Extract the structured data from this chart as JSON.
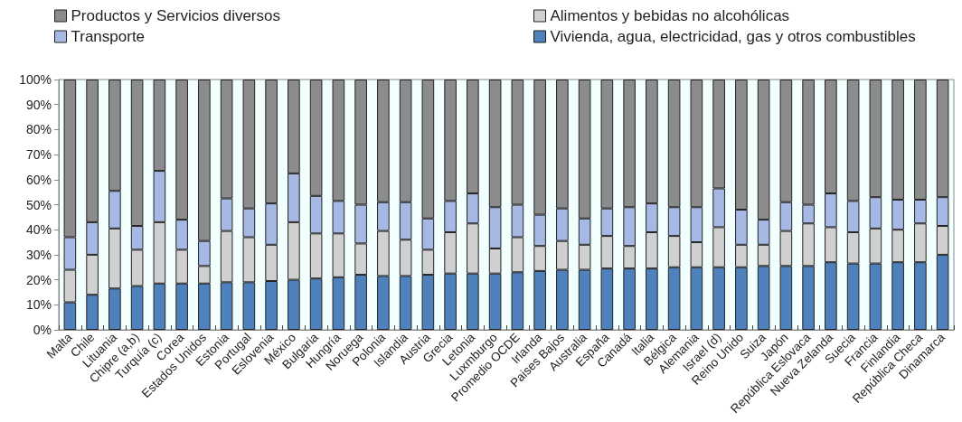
{
  "chart_data": {
    "type": "bar",
    "stacked": true,
    "grid": false,
    "legend": "top",
    "categories": [
      "Malta",
      "Chile",
      "Lituania",
      "Chipre (a,b)",
      "Turquía (c)",
      "Corea",
      "Estados Unidos",
      "Estonia",
      "Portugal",
      "Eslovenia",
      "México",
      "Bulgaria",
      "Hungría",
      "Noruega",
      "Polonia",
      "Islandia",
      "Austria",
      "Grecia",
      "Letonia",
      "Luxmburgo",
      "Promedio OCDE",
      "Irlanda",
      "Paises Bajos",
      "Australia",
      "España",
      "Canadá",
      "Italia",
      "Bélgica",
      "Alemania",
      "Israel (d)",
      "Reino Unido",
      "Suiza",
      "Japón",
      "República Eslovaca",
      "Nueva Zelanda",
      "Suecia",
      "Francia",
      "Finlandia",
      "República Checa",
      "Dinamarca"
    ],
    "ylim": [
      0,
      100
    ],
    "yticks": [
      {
        "value": 0,
        "label": "0%"
      },
      {
        "value": 10,
        "label": "10%"
      },
      {
        "value": 20,
        "label": "20%"
      },
      {
        "value": 30,
        "label": "30%"
      },
      {
        "value": 40,
        "label": "40%"
      },
      {
        "value": 50,
        "label": "50%"
      },
      {
        "value": 60,
        "label": "60%"
      },
      {
        "value": 70,
        "label": "70%"
      },
      {
        "value": 80,
        "label": "80%"
      },
      {
        "value": 90,
        "label": "90%"
      },
      {
        "value": 100,
        "label": "100%"
      }
    ],
    "series": [
      {
        "name": "Vivienda, agua, electricidad, gas y otros combustibles",
        "color": "#4f81bd",
        "values": [
          11,
          14,
          16.5,
          17.5,
          18.5,
          18.5,
          18.5,
          19,
          19,
          19.5,
          20,
          20.5,
          21,
          22,
          21.5,
          21.5,
          22,
          22.5,
          22.5,
          22.5,
          23,
          23.5,
          24,
          24,
          24.5,
          24.5,
          24.5,
          25,
          25,
          25,
          25,
          25.5,
          25.5,
          25.5,
          27,
          26.5,
          26.5,
          27,
          27,
          30
        ]
      },
      {
        "name": "Alimentos y bebidas no alcohólicas",
        "color": "#d0d0d0",
        "values": [
          13,
          16,
          24,
          14.5,
          24.5,
          13.5,
          7,
          20.5,
          18,
          14.5,
          23,
          18,
          17.5,
          12.5,
          18,
          14.5,
          10,
          16.5,
          20,
          10,
          14,
          10,
          11.5,
          10,
          13,
          9,
          14.5,
          12.5,
          10,
          16,
          9,
          8.5,
          14,
          17,
          14,
          12.5,
          14,
          13,
          15.5,
          11.5
        ]
      },
      {
        "name": "Transporte",
        "color": "#a6b8e4",
        "values": [
          13,
          13,
          15,
          9.5,
          20.5,
          12,
          10,
          13,
          11.5,
          16.5,
          19.5,
          15,
          13,
          15.5,
          11.5,
          15,
          12.5,
          12.5,
          12,
          16.5,
          13,
          12.5,
          13,
          10.5,
          11,
          15.5,
          11.5,
          11.5,
          14,
          15.5,
          14,
          10,
          11.5,
          7.5,
          13.5,
          12.5,
          12.5,
          12,
          9.5,
          11.5
        ]
      },
      {
        "name": "Productos y Servicios diversos",
        "color": "#8c8c8c",
        "values": [
          63,
          57,
          44.5,
          58.5,
          36.5,
          56,
          64.5,
          47.5,
          51.5,
          49.5,
          37.5,
          46.5,
          48.5,
          50,
          49,
          49,
          55.5,
          48.5,
          45.5,
          51,
          50,
          54,
          51.5,
          55.5,
          51.5,
          51,
          49.5,
          51,
          51,
          43.5,
          52,
          56,
          49,
          50,
          45.5,
          48.5,
          47,
          48,
          48,
          47
        ]
      }
    ]
  }
}
